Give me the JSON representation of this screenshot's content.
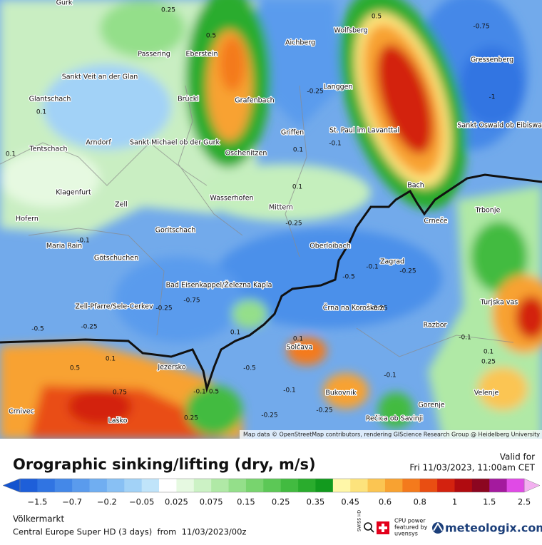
{
  "map": {
    "places": [
      "Gurk",
      "Wolfsberg",
      "Passering",
      "Eberstein",
      "Aichberg",
      "Gressenberg",
      "Sankt Veit an der Glan",
      "Glantschach",
      "Langgen",
      "Brückl",
      "Grafenbach",
      "Sankt Oswald ob Eibiswald",
      "St. Paul im Lavanttal",
      "Griffen",
      "Sankt Michael ob der Gurk",
      "Arndorf",
      "Tentschach",
      "Oschenitzen",
      "Klagenfurt",
      "Wasserhofen",
      "Bach",
      "Zell",
      "Mittern",
      "Trbonje",
      "Hofern",
      "Goritschach",
      "Crneče",
      "Maria Rain",
      "Oberloibach",
      "Zagrad",
      "Götschuchen",
      "Bad Eisenkappel/Železna Kapla",
      "Zell-Pfarre/Sele-Cerkev",
      "Turjska vas",
      "Črna na Koroškem",
      "Razbor",
      "Solčava",
      "Jezersko",
      "Bukovnik",
      "Velenje",
      "Crnivec",
      "Laško",
      "Gorenje",
      "Rečica ob Savinji"
    ],
    "contour_labels": [
      "0.25",
      "0.5",
      "0.5",
      "-0.75",
      "-0.25",
      "-1",
      "0.1",
      "0.1",
      "-0.1",
      "0.1",
      "0.1",
      "-0.25",
      "-0.1",
      "-0.5",
      "-0.1",
      "-0.25",
      "-0.75",
      "-0.25",
      "-0.25",
      "-0.5",
      "-0.25",
      "0.1",
      "0.1",
      "-0.1",
      "0.1",
      "0.1",
      "0.25",
      "0.5",
      "-0.5",
      "-0.1",
      "-0.1",
      "0.75",
      "0.5",
      "-0.1",
      "-0.25",
      "-0.25",
      "0.25"
    ],
    "attribution": "Map data © OpenStreetMap contributors, rendering GIScience Research Group @ Heidelberg University"
  },
  "legend": {
    "title": "Orographic sinking/lifting (dry, m/s)",
    "ticks": [
      "−1.5",
      "−0.7",
      "−0.2",
      "−0.05",
      "0.025",
      "0.075",
      "0.15",
      "0.25",
      "0.35",
      "0.45",
      "0.6",
      "0.8",
      "1",
      "1.5",
      "2.5"
    ],
    "colors": [
      "#1e5fd9",
      "#3074e2",
      "#4488e8",
      "#5a9bed",
      "#70aef1",
      "#88c0f4",
      "#a2d2f7",
      "#c0e4fa",
      "#ffffff",
      "#e6f9e1",
      "#ccf2c5",
      "#b0e9a6",
      "#94df8a",
      "#78d46e",
      "#5cc856",
      "#42bb40",
      "#2aac2d",
      "#129a1e",
      "#fff7a8",
      "#fde37c",
      "#fbc552",
      "#f8a231",
      "#f47a1c",
      "#e94e12",
      "#d3220f",
      "#b00b10",
      "#8c0620",
      "#a41a9e",
      "#e04ae6"
    ],
    "low_color": "#1454cf",
    "high_color": "#f3b0f0"
  },
  "valid": {
    "label": "Valid for",
    "time": "Fri 11/03/2023, 11:00am CET"
  },
  "footer": {
    "location": "Völkermarkt",
    "model": "Central Europe Super HD (3 days)  from  11/03/2023/00z",
    "sponsor_badge": "SWISS HD",
    "sponsor": [
      "CPU power",
      "featured by",
      "uvensys"
    ],
    "brand": "meteologix.com"
  }
}
